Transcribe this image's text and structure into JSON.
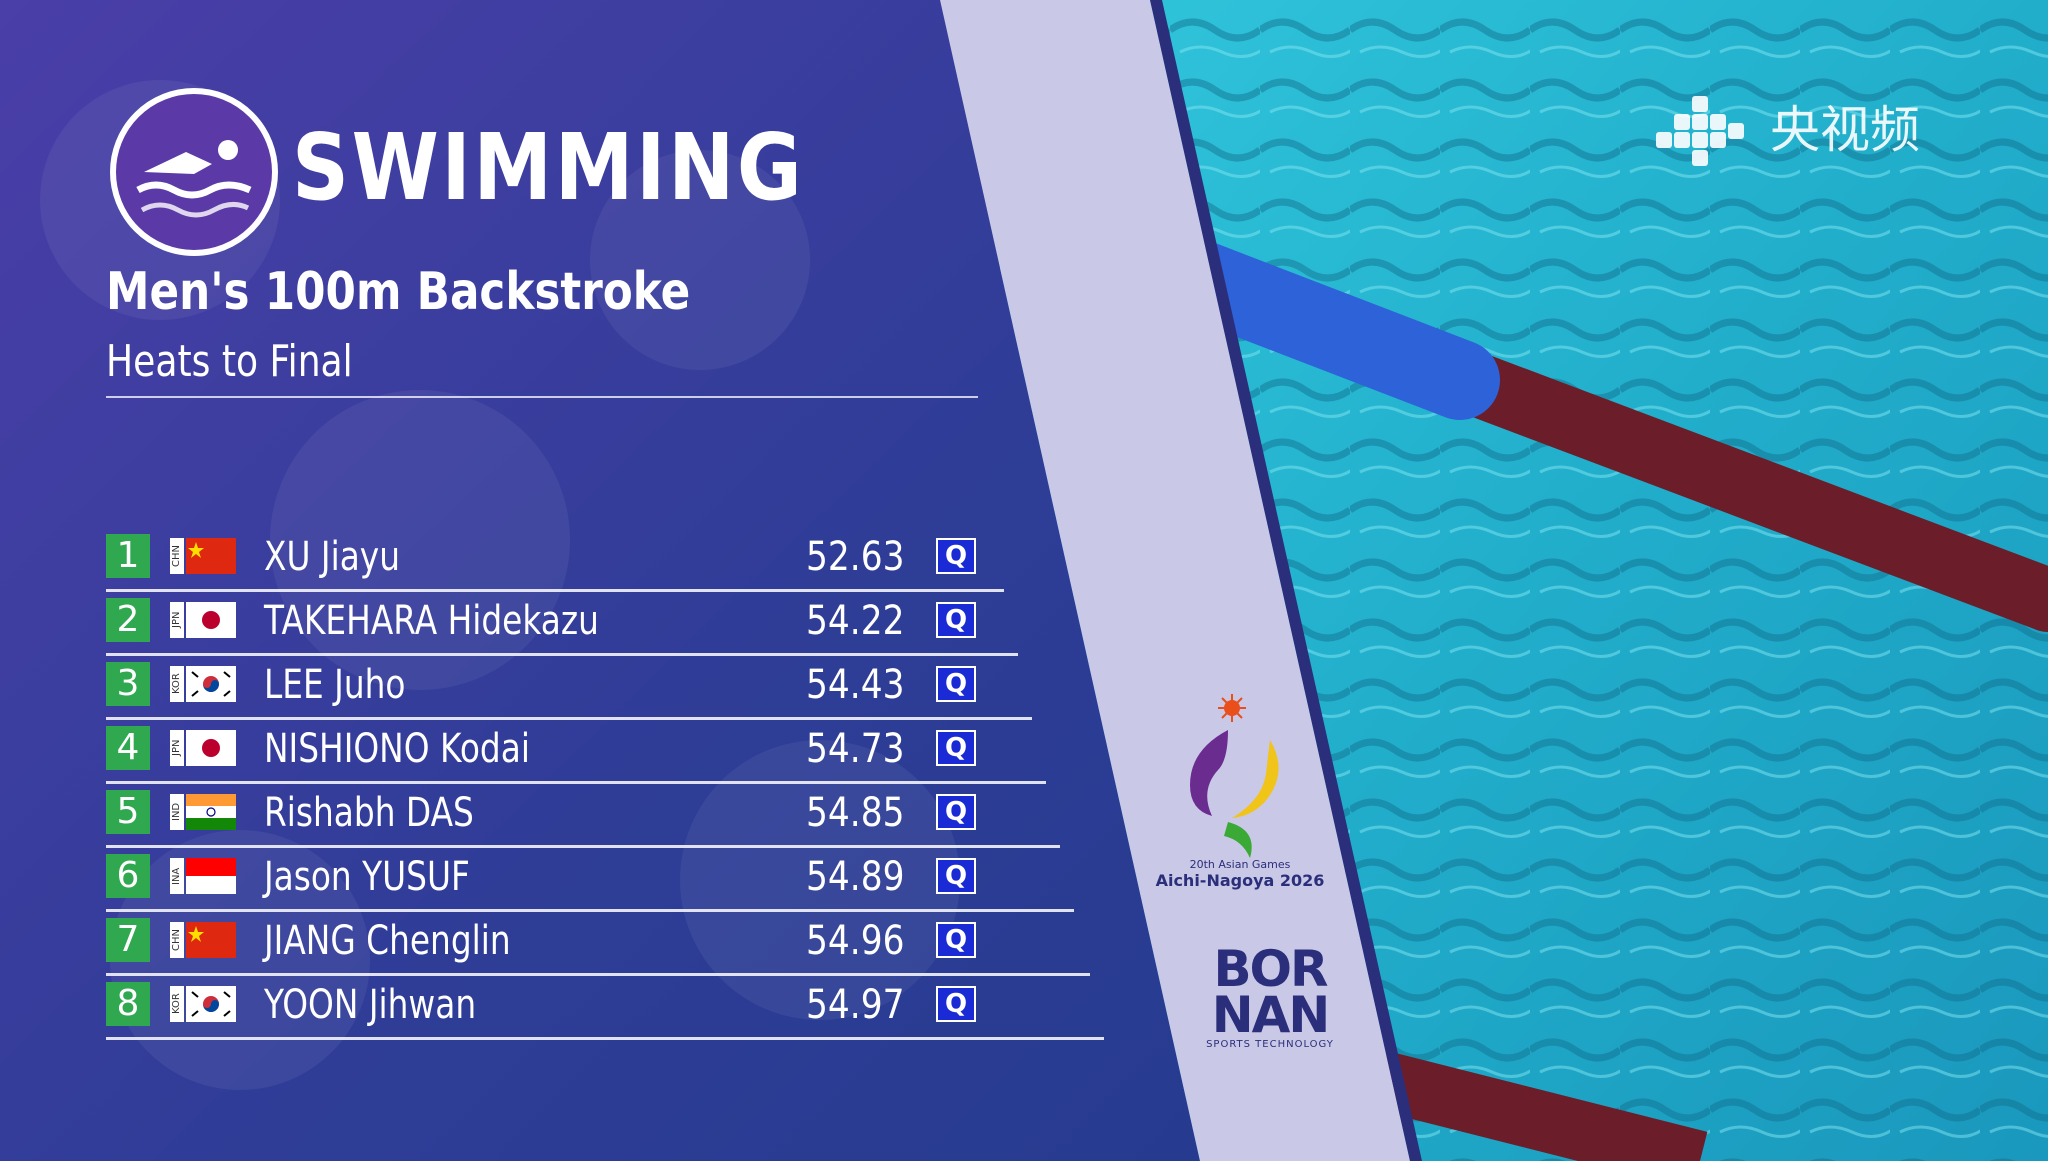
{
  "header": {
    "sport": "SWIMMING",
    "sport_icon": "swimmer-icon",
    "event": "Men's 100m Backstroke",
    "stage": "Heats to Final"
  },
  "results": [
    {
      "rank": "1",
      "noc": "CHN",
      "flag": "china",
      "name": "XU Jiayu",
      "time": "52.63",
      "qual": "Q"
    },
    {
      "rank": "2",
      "noc": "JPN",
      "flag": "japan",
      "name": "TAKEHARA Hidekazu",
      "time": "54.22",
      "qual": "Q"
    },
    {
      "rank": "3",
      "noc": "KOR",
      "flag": "korea",
      "name": "LEE Juho",
      "time": "54.43",
      "qual": "Q"
    },
    {
      "rank": "4",
      "noc": "JPN",
      "flag": "japan",
      "name": "NISHIONO Kodai",
      "time": "54.73",
      "qual": "Q"
    },
    {
      "rank": "5",
      "noc": "IND",
      "flag": "india",
      "name": "Rishabh DAS",
      "time": "54.85",
      "qual": "Q"
    },
    {
      "rank": "6",
      "noc": "INA",
      "flag": "indonesia",
      "name": "Jason YUSUF",
      "time": "54.89",
      "qual": "Q"
    },
    {
      "rank": "7",
      "noc": "CHN",
      "flag": "china",
      "name": "JIANG Chenglin",
      "time": "54.96",
      "qual": "Q"
    },
    {
      "rank": "8",
      "noc": "KOR",
      "flag": "korea",
      "name": "YOON Jihwan",
      "time": "54.97",
      "qual": "Q"
    }
  ],
  "sponsors": {
    "games_line1": "20th Asian Games",
    "games_line2": "Aichi-Nagoya 2026",
    "bornan_top": "BOR",
    "bornan_bottom": "NAN",
    "bornan_sub": "SPORTS TECHNOLOGY"
  },
  "broadcaster": {
    "name": "央视频",
    "icon": "cctv-video-logo-icon"
  },
  "colors": {
    "panel": "#3a3f9e",
    "rank_green": "#2fa84f",
    "qual_blue": "#1a2bd6",
    "pool": "#1fb4cf"
  }
}
